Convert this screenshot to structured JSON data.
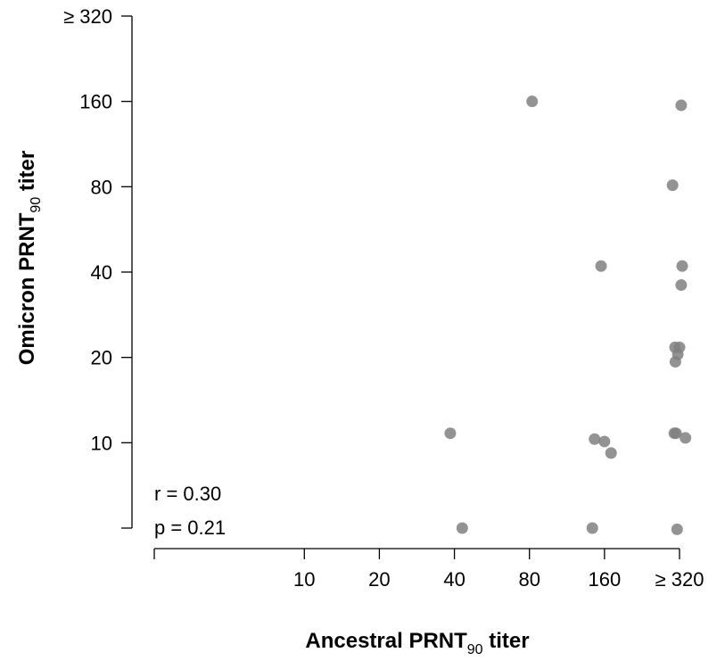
{
  "chart_data": {
    "type": "scatter",
    "title": "",
    "xlabel": "Ancestral PRNT",
    "xlabel_sub": "90",
    "xlabel_suffix": " titer",
    "ylabel": "Omicron PRNT",
    "ylabel_sub": "90",
    "ylabel_suffix": " titer",
    "x_scale": "log2",
    "y_scale": "log2",
    "x_ticks": [
      {
        "label": "",
        "value": 2.5
      },
      {
        "label": "10",
        "value": 10
      },
      {
        "label": "20",
        "value": 20
      },
      {
        "label": "40",
        "value": 40
      },
      {
        "label": "80",
        "value": 80
      },
      {
        "label": "160",
        "value": 160
      },
      {
        "label": "≥ 320",
        "value": 320
      }
    ],
    "y_ticks": [
      {
        "label": "",
        "value": 5
      },
      {
        "label": "10",
        "value": 10
      },
      {
        "label": "20",
        "value": 20
      },
      {
        "label": "40",
        "value": 40
      },
      {
        "label": "80",
        "value": 80
      },
      {
        "label": "160",
        "value": 160
      },
      {
        "label": "≥ 320",
        "value": 320
      }
    ],
    "xlim": [
      2.5,
      320
    ],
    "ylim": [
      5,
      320
    ],
    "grid": false,
    "point_color": "#808080",
    "stats": {
      "r": "r = 0.30",
      "p": "p = 0.21"
    },
    "points": [
      {
        "x": 82,
        "y": 160
      },
      {
        "x": 325,
        "y": 155
      },
      {
        "x": 300,
        "y": 81
      },
      {
        "x": 155,
        "y": 42
      },
      {
        "x": 328,
        "y": 42
      },
      {
        "x": 325,
        "y": 36
      },
      {
        "x": 307,
        "y": 21.7
      },
      {
        "x": 320,
        "y": 21.7
      },
      {
        "x": 315,
        "y": 20.5
      },
      {
        "x": 308,
        "y": 19.3
      },
      {
        "x": 38.5,
        "y": 10.8
      },
      {
        "x": 305,
        "y": 10.8
      },
      {
        "x": 310,
        "y": 10.8
      },
      {
        "x": 338,
        "y": 10.4
      },
      {
        "x": 146,
        "y": 10.3
      },
      {
        "x": 160,
        "y": 10.1
      },
      {
        "x": 170,
        "y": 9.2
      },
      {
        "x": 43,
        "y": 5
      },
      {
        "x": 143,
        "y": 5
      },
      {
        "x": 313,
        "y": 4.95
      }
    ]
  }
}
